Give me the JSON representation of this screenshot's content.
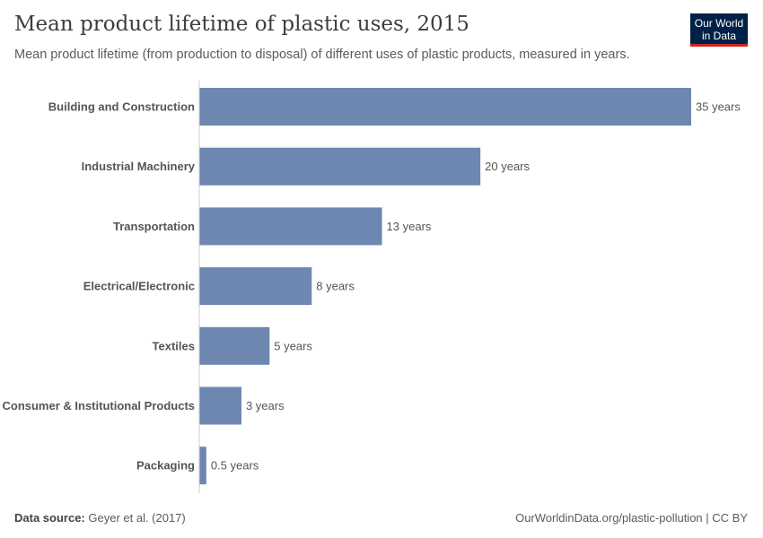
{
  "title": "Mean product lifetime of plastic uses, 2015",
  "subtitle": "Mean product lifetime (from production to disposal) of different uses of plastic products, measured in years.",
  "logo": "Our World in Data",
  "logo_colors": {
    "background": "#002147",
    "accent": "#ce261e"
  },
  "footer": {
    "source_label": "Data source:",
    "source": "Geyer et al. (2017)",
    "license": "OurWorldinData.org/plastic-pollution | CC BY"
  },
  "chart_data": {
    "type": "bar",
    "orientation": "horizontal",
    "title": "Mean product lifetime of plastic uses, 2015",
    "categories": [
      "Building and Construction",
      "Industrial Machinery",
      "Transportation",
      "Electrical/Electronic",
      "Textiles",
      "Consumer & Institutional Products",
      "Packaging"
    ],
    "values": [
      35,
      20,
      13,
      8,
      5,
      3,
      0.5
    ],
    "data_labels": [
      "35 years",
      "20 years",
      "13 years",
      "8 years",
      "5 years",
      "3 years",
      "0.5 years"
    ],
    "unit": "years",
    "xlim": [
      0,
      35
    ],
    "grid": false,
    "bar_color": "#6d87b0"
  }
}
